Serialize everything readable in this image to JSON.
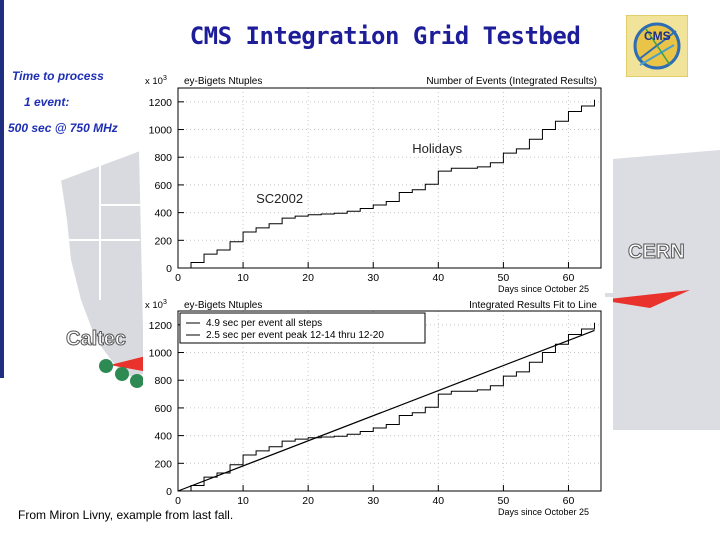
{
  "slide": {
    "title": "CMS Integration Grid Testbed",
    "time_label_1": "Time to process",
    "time_label_2": "1 event:",
    "time_label_3": "500 sec @ 750 MHz",
    "footer": "From Miron Livny, example from last fall.",
    "map_labels": {
      "caltech": "Caltec",
      "cern": "CERN"
    },
    "logo_text": "CMS",
    "colors": {
      "title": "#1d1d9a",
      "accent_bar": "#1e2f82",
      "link_red": "#e8322b",
      "node_green": "#2d8a52"
    }
  },
  "chart_data": [
    {
      "type": "line",
      "panel_title": "ey-Bigets Ntuples",
      "title": "Number of Events (Integrated Results)",
      "xlabel": "Days since October 25",
      "ylabel": "",
      "y_exponent_label": "x 10",
      "y_exponent_sup": "3",
      "xlim": [
        0,
        65
      ],
      "ylim": [
        0,
        1300
      ],
      "xticks": [
        0,
        10,
        20,
        30,
        40,
        50,
        60
      ],
      "yticks": [
        0,
        200,
        400,
        600,
        800,
        1000,
        1200
      ],
      "annotations": [
        {
          "text": "Holidays",
          "x": 36,
          "y": 830
        },
        {
          "text": "SC2002",
          "x": 12,
          "y": 470
        }
      ],
      "series": [
        {
          "x": [
            0,
            2,
            4,
            6,
            8,
            10,
            12,
            14,
            16,
            18,
            20,
            22,
            24,
            26,
            28,
            30,
            32,
            34,
            36,
            38,
            40,
            42,
            44,
            46,
            48,
            50,
            52,
            54,
            56,
            58,
            60,
            62,
            64
          ],
          "y": [
            0,
            40,
            100,
            130,
            190,
            260,
            290,
            320,
            360,
            375,
            385,
            390,
            395,
            410,
            430,
            455,
            480,
            545,
            565,
            605,
            700,
            720,
            720,
            730,
            760,
            830,
            860,
            930,
            1000,
            1060,
            1130,
            1170,
            1215
          ]
        }
      ]
    },
    {
      "type": "line",
      "panel_title": "ey-Bigets Ntuples",
      "title": "Integrated Results Fit to Line",
      "xlabel": "Days since October 25",
      "ylabel": "",
      "y_exponent_label": "x 10",
      "y_exponent_sup": "3",
      "xlim": [
        0,
        65
      ],
      "ylim": [
        0,
        1300
      ],
      "xticks": [
        0,
        10,
        20,
        30,
        40,
        50,
        60
      ],
      "yticks": [
        0,
        200,
        400,
        600,
        800,
        1000,
        1200
      ],
      "legend_lines": [
        "4.9 sec per event all steps",
        "2.5 sec per event peak 12-14 thru 12-20"
      ],
      "fit_line": {
        "x": [
          0,
          64
        ],
        "y": [
          0,
          1160
        ]
      },
      "series": [
        {
          "x": [
            0,
            2,
            4,
            6,
            8,
            10,
            12,
            14,
            16,
            18,
            20,
            22,
            24,
            26,
            28,
            30,
            32,
            34,
            36,
            38,
            40,
            42,
            44,
            46,
            48,
            50,
            52,
            54,
            56,
            58,
            60,
            62,
            64
          ],
          "y": [
            0,
            40,
            100,
            130,
            190,
            260,
            290,
            320,
            360,
            375,
            385,
            390,
            395,
            410,
            430,
            455,
            480,
            545,
            565,
            605,
            700,
            720,
            720,
            730,
            760,
            830,
            860,
            930,
            1000,
            1060,
            1130,
            1170,
            1215
          ]
        }
      ]
    }
  ]
}
